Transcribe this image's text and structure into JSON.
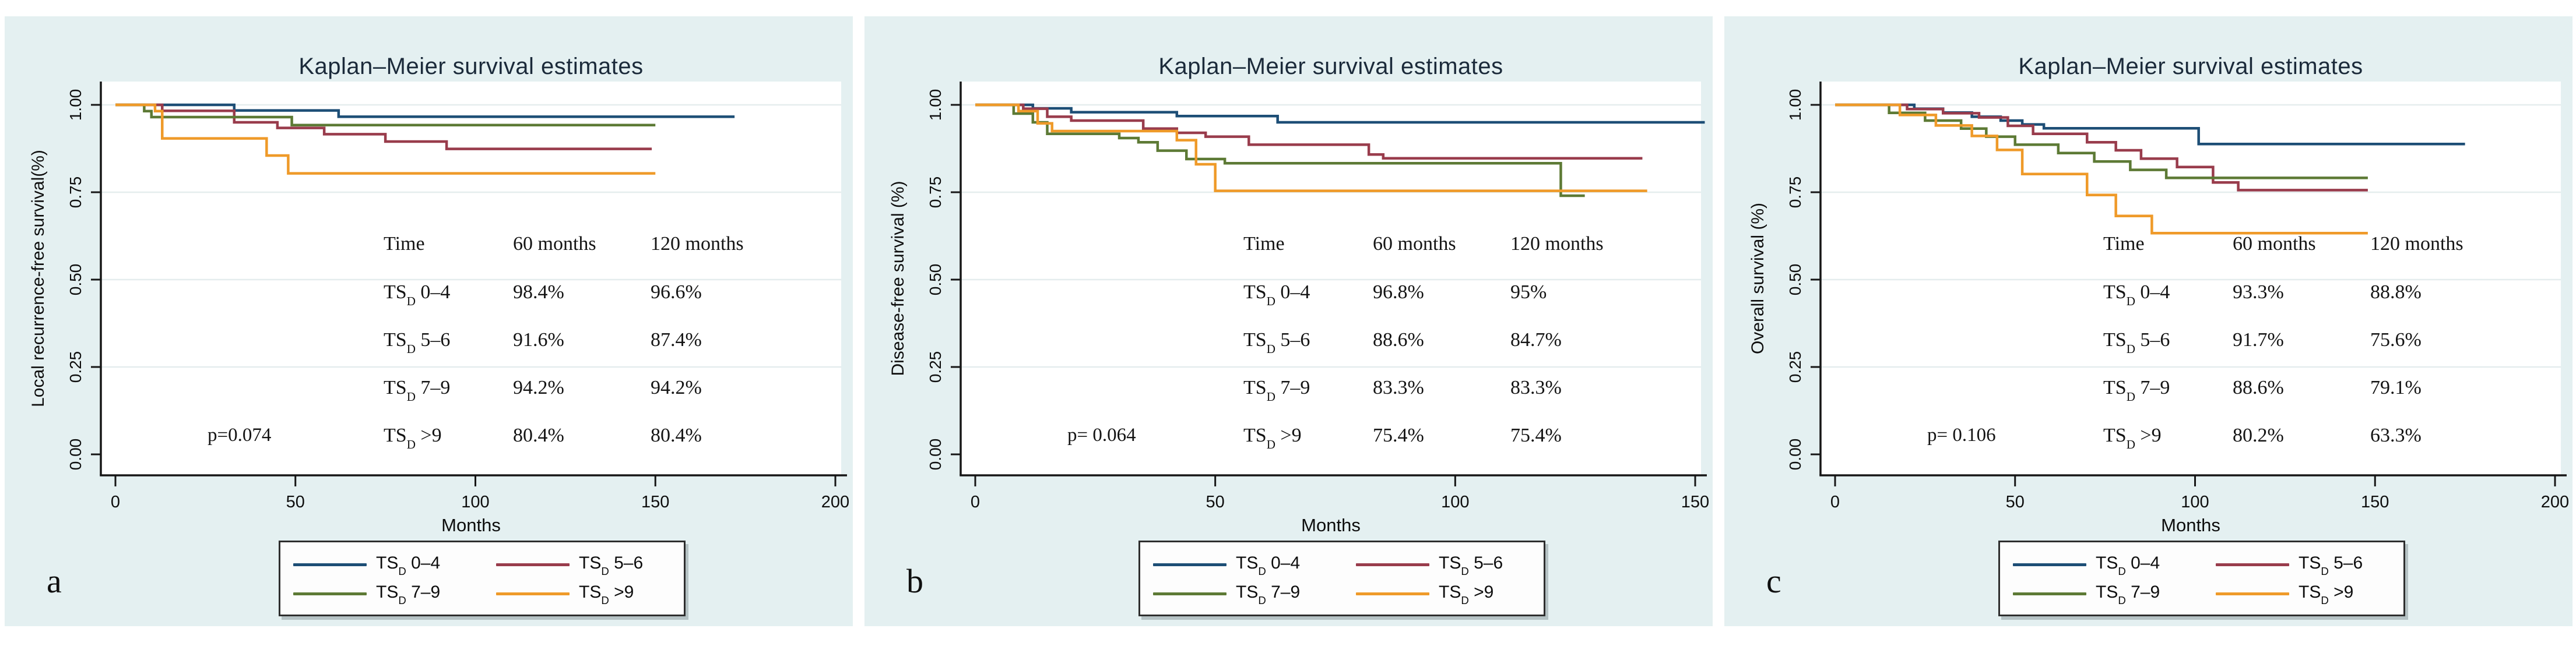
{
  "figure": {
    "background": "#ffffff",
    "panel_background": "#e4f0f1",
    "plot_background": "#ffffff",
    "grid_color": "#e5edee",
    "axis_color": "#161616",
    "title_color": "#1b2a3a"
  },
  "chart_data": [
    {
      "id": "a",
      "type": "line",
      "subtype": "kaplan-meier-step",
      "panel_letter": "a",
      "title": "Kaplan–Meier survival estimates",
      "xlabel": "Months",
      "ylabel": "Local recurrence-free survival(%)",
      "xlim": [
        0,
        200
      ],
      "ylim": [
        0.0,
        1.0
      ],
      "grid": true,
      "x_ticks": [
        0,
        50,
        100,
        150,
        200
      ],
      "y_ticks": [
        {
          "label": "1.00",
          "value": 1.0
        },
        {
          "label": "0.75",
          "value": 0.75
        },
        {
          "label": "0.50",
          "value": 0.5
        },
        {
          "label": "0.25",
          "value": 0.25
        },
        {
          "label": "0.00",
          "value": 0.0
        }
      ],
      "p_value": "p=0.074",
      "table": {
        "headers": [
          "Time",
          "60 months",
          "120 months"
        ],
        "rows": [
          {
            "group": "TS|D| 0–4",
            "m60": "98.4%",
            "m120": "96.6%"
          },
          {
            "group": "TS|D| 5–6",
            "m60": "91.6%",
            "m120": "87.4%"
          },
          {
            "group": "TS|D| 7–9",
            "m60": "94.2%",
            "m120": "94.2%"
          },
          {
            "group": "TS|D| >9",
            "m60": "80.4%",
            "m120": "80.4%"
          }
        ]
      },
      "legend": {
        "position": "bottom",
        "columns": 2
      },
      "series": [
        {
          "key": "ts0-4",
          "label": "TS|D| 0–4",
          "color": "#1d4e76",
          "points": [
            [
              0,
              1
            ],
            [
              33,
              0.984
            ],
            [
              62,
              0.966
            ],
            [
              172,
              0.966
            ]
          ]
        },
        {
          "key": "ts5-6",
          "label": "TS|D| 5–6",
          "color": "#993c4c",
          "points": [
            [
              0,
              1
            ],
            [
              13,
              0.983
            ],
            [
              33,
              0.95
            ],
            [
              45,
              0.934
            ],
            [
              58,
              0.916
            ],
            [
              75,
              0.895
            ],
            [
              92,
              0.874
            ],
            [
              149,
              0.874
            ]
          ]
        },
        {
          "key": "ts7-9",
          "label": "TS|D| 7–9",
          "color": "#5d7a35",
          "points": [
            [
              0,
              1
            ],
            [
              8,
              0.982
            ],
            [
              10,
              0.965
            ],
            [
              49,
              0.942
            ],
            [
              150,
              0.942
            ]
          ]
        },
        {
          "key": "ts-gt9",
          "label": "TS|D| >9",
          "color": "#ef9a29",
          "points": [
            [
              0,
              1
            ],
            [
              11,
              0.982
            ],
            [
              13,
              0.904
            ],
            [
              42,
              0.855
            ],
            [
              48,
              0.804
            ],
            [
              150,
              0.804
            ]
          ]
        }
      ]
    },
    {
      "id": "b",
      "type": "line",
      "subtype": "kaplan-meier-step",
      "panel_letter": "b",
      "title": "Kaplan–Meier survival estimates",
      "xlabel": "Months",
      "ylabel": "Disease-free survival (%)",
      "xlim": [
        0,
        150
      ],
      "ylim": [
        0.0,
        1.0
      ],
      "grid": true,
      "x_ticks": [
        0,
        50,
        100,
        150
      ],
      "y_ticks": [
        {
          "label": "1.00",
          "value": 1.0
        },
        {
          "label": "0.75",
          "value": 0.75
        },
        {
          "label": "0.50",
          "value": 0.5
        },
        {
          "label": "0.25",
          "value": 0.25
        },
        {
          "label": "0.00",
          "value": 0.0
        }
      ],
      "p_value": "p= 0.064",
      "table": {
        "headers": [
          "Time",
          "60 months",
          "120 months"
        ],
        "rows": [
          {
            "group": "TS|D| 0–4",
            "m60": "96.8%",
            "m120": "95%"
          },
          {
            "group": "TS|D| 5–6",
            "m60": "88.6%",
            "m120": "84.7%"
          },
          {
            "group": "TS|D| 7–9",
            "m60": "83.3%",
            "m120": "83.3%"
          },
          {
            "group": "TS|D| >9",
            "m60": "75.4%",
            "m120": "75.4%"
          }
        ]
      },
      "legend": {
        "position": "bottom",
        "columns": 2
      },
      "series": [
        {
          "key": "ts0-4",
          "label": "TS|D| 0–4",
          "color": "#1d4e76",
          "points": [
            [
              0,
              1
            ],
            [
              12,
              0.99
            ],
            [
              20,
              0.979
            ],
            [
              42,
              0.968
            ],
            [
              63,
              0.95
            ],
            [
              152,
              0.95
            ]
          ]
        },
        {
          "key": "ts5-6",
          "label": "TS|D| 5–6",
          "color": "#993c4c",
          "points": [
            [
              0,
              1
            ],
            [
              10,
              0.989
            ],
            [
              15,
              0.966
            ],
            [
              20,
              0.955
            ],
            [
              35,
              0.932
            ],
            [
              42,
              0.92
            ],
            [
              48,
              0.909
            ],
            [
              57,
              0.886
            ],
            [
              82,
              0.858
            ],
            [
              85,
              0.847
            ],
            [
              139,
              0.847
            ]
          ]
        },
        {
          "key": "ts7-9",
          "label": "TS|D| 7–9",
          "color": "#5d7a35",
          "points": [
            [
              0,
              1
            ],
            [
              8,
              0.975
            ],
            [
              12,
              0.95
            ],
            [
              15,
              0.917
            ],
            [
              30,
              0.905
            ],
            [
              34,
              0.893
            ],
            [
              38,
              0.869
            ],
            [
              44,
              0.845
            ],
            [
              52,
              0.833
            ],
            [
              122,
              0.74
            ],
            [
              127,
              0.74
            ]
          ]
        },
        {
          "key": "ts-gt9",
          "label": "TS|D| >9",
          "color": "#ef9a29",
          "points": [
            [
              0,
              1
            ],
            [
              9,
              0.982
            ],
            [
              13,
              0.947
            ],
            [
              16,
              0.925
            ],
            [
              42,
              0.899
            ],
            [
              46,
              0.83
            ],
            [
              50,
              0.754
            ],
            [
              140,
              0.754
            ]
          ]
        }
      ]
    },
    {
      "id": "c",
      "type": "line",
      "subtype": "kaplan-meier-step",
      "panel_letter": "c",
      "title": "Kaplan–Meier survival estimates",
      "xlabel": "Months",
      "ylabel": "Overall survival (%)",
      "xlim": [
        0,
        200
      ],
      "ylim": [
        0.0,
        1.0
      ],
      "grid": true,
      "x_ticks": [
        0,
        50,
        100,
        150,
        200
      ],
      "y_ticks": [
        {
          "label": "1.00",
          "value": 1.0
        },
        {
          "label": "0.75",
          "value": 0.75
        },
        {
          "label": "0.50",
          "value": 0.5
        },
        {
          "label": "0.25",
          "value": 0.25
        },
        {
          "label": "0.00",
          "value": 0.0
        }
      ],
      "p_value": "p= 0.106",
      "table": {
        "headers": [
          "Time",
          "60 months",
          "120 months"
        ],
        "rows": [
          {
            "group": "TS|D| 0–4",
            "m60": "93.3%",
            "m120": "88.8%"
          },
          {
            "group": "TS|D| 5–6",
            "m60": "91.7%",
            "m120": "75.6%"
          },
          {
            "group": "TS|D| 7–9",
            "m60": "88.6%",
            "m120": "79.1%"
          },
          {
            "group": "TS|D| >9",
            "m60": "80.2%",
            "m120": "63.3%"
          }
        ]
      },
      "legend": {
        "position": "bottom",
        "columns": 2
      },
      "series": [
        {
          "key": "ts0-4",
          "label": "TS|D| 0–4",
          "color": "#1d4e76",
          "points": [
            [
              0,
              1
            ],
            [
              22,
              0.989
            ],
            [
              30,
              0.978
            ],
            [
              38,
              0.966
            ],
            [
              46,
              0.955
            ],
            [
              52,
              0.944
            ],
            [
              58,
              0.933
            ],
            [
              101,
              0.888
            ],
            [
              175,
              0.888
            ]
          ]
        },
        {
          "key": "ts5-6",
          "label": "TS|D| 5–6",
          "color": "#993c4c",
          "points": [
            [
              0,
              1
            ],
            [
              20,
              0.988
            ],
            [
              30,
              0.976
            ],
            [
              40,
              0.964
            ],
            [
              48,
              0.94
            ],
            [
              55,
              0.917
            ],
            [
              70,
              0.893
            ],
            [
              78,
              0.87
            ],
            [
              85,
              0.846
            ],
            [
              95,
              0.822
            ],
            [
              105,
              0.778
            ],
            [
              112,
              0.756
            ],
            [
              148,
              0.756
            ]
          ]
        },
        {
          "key": "ts7-9",
          "label": "TS|D| 7–9",
          "color": "#5d7a35",
          "points": [
            [
              0,
              1
            ],
            [
              15,
              0.977
            ],
            [
              25,
              0.955
            ],
            [
              35,
              0.932
            ],
            [
              42,
              0.909
            ],
            [
              50,
              0.886
            ],
            [
              62,
              0.862
            ],
            [
              72,
              0.838
            ],
            [
              82,
              0.814
            ],
            [
              92,
              0.791
            ],
            [
              148,
              0.791
            ]
          ]
        },
        {
          "key": "ts-gt9",
          "label": "TS|D| >9",
          "color": "#ef9a29",
          "points": [
            [
              0,
              1
            ],
            [
              18,
              0.971
            ],
            [
              28,
              0.941
            ],
            [
              38,
              0.911
            ],
            [
              45,
              0.871
            ],
            [
              52,
              0.802
            ],
            [
              70,
              0.742
            ],
            [
              78,
              0.682
            ],
            [
              88,
              0.633
            ],
            [
              148,
              0.633
            ]
          ]
        }
      ]
    }
  ]
}
